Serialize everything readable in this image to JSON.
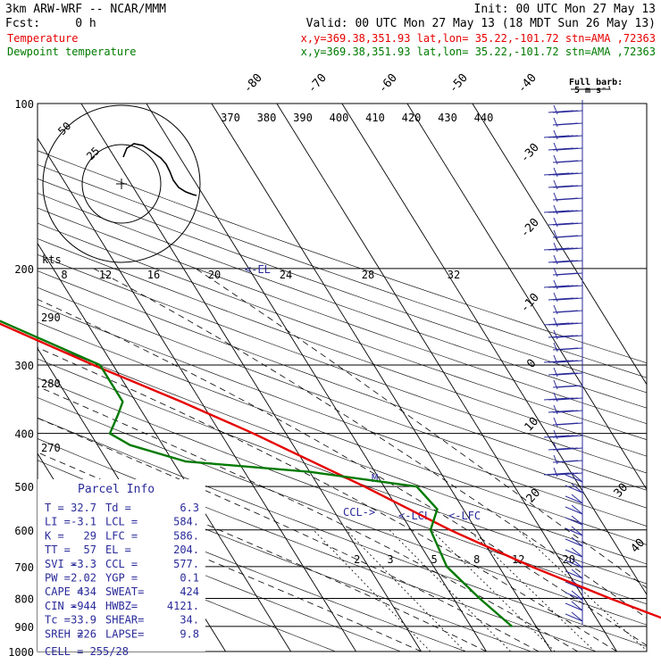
{
  "header": {
    "model": "3km ARW-WRF -- NCAR/MMM",
    "init": "Init: 00 UTC Mon 27 May 13",
    "fcst": "Fcst:     0 h",
    "valid": "Valid: 00 UTC Mon 27 May 13 (18 MDT Sun 26 May 13)",
    "lines": [
      {
        "label": "Temperature",
        "info": "x,y=369.38,351.93   lat,lon= 35.22,-101.72  stn=AMA ,72363",
        "color": "#e60000"
      },
      {
        "label": "Dewpoint temperature",
        "info": "x,y=369.38,351.93   lat,lon= 35.22,-101.72  stn=AMA ,72363",
        "color": "#007a00"
      }
    ]
  },
  "chart_data": {
    "type": "line",
    "title": "",
    "y_scale": "log-pressure",
    "ylim": [
      1000,
      100
    ],
    "pressure_ticks": [
      "100",
      "200",
      "300",
      "400",
      "500",
      "600",
      "700",
      "800",
      "900",
      "1000"
    ],
    "isotherm_labels": [
      "-80",
      "-70",
      "-60",
      "-50",
      "-40",
      "-30",
      "-20",
      "-10",
      "0",
      "10",
      "20",
      "30",
      "40"
    ],
    "theta_labels": [
      "370",
      "380",
      "390",
      "400",
      "410",
      "420",
      "430",
      "440"
    ],
    "theta_left_labels": [
      "290",
      "280",
      "270"
    ],
    "mixing_ratio_labels": [
      "2",
      "3",
      "5",
      "8",
      "12",
      "20"
    ],
    "hodograph": {
      "units": "kts",
      "ring_labels": [
        "25",
        "50"
      ],
      "scale_labels": [
        "8",
        "12",
        "16",
        "20",
        "24",
        "28",
        "32"
      ]
    },
    "barb_key": "Full barb:",
    "barb_key_unit": "5 m s⁻¹",
    "annotations": [
      "<-EL",
      "CCL->",
      "<-LCL",
      "<-LFC",
      "M"
    ],
    "series": [
      {
        "name": "Temperature",
        "color": "#e60000",
        "p": [
          900,
          800,
          700,
          600,
          500,
          400,
          350,
          300,
          250,
          210,
          200,
          190,
          180,
          170,
          160,
          150,
          140,
          130,
          120,
          110,
          100
        ],
        "t": [
          32.7,
          24,
          15,
          6,
          -3,
          -15,
          -23,
          -33,
          -44,
          -55,
          -57,
          -58,
          -60,
          -62,
          -64,
          -65,
          -66,
          -67,
          -68,
          -69,
          -70
        ]
      },
      {
        "name": "Dewpoint temperature",
        "color": "#007a00",
        "p": [
          900,
          800,
          700,
          600,
          550,
          500,
          470,
          450,
          420,
          400,
          370,
          350,
          300,
          250,
          200,
          190,
          180,
          170,
          160,
          150,
          140,
          130,
          120,
          110,
          100
        ],
        "t": [
          6.3,
          4,
          2,
          3,
          6,
          5,
          -10,
          -28,
          -35,
          -37,
          -34,
          -32,
          -32,
          -43,
          -60,
          -62,
          -64,
          -67,
          -70,
          -73,
          -76,
          -79,
          -82,
          -84,
          -86
        ]
      }
    ]
  },
  "parcel": {
    "title": "Parcel Info",
    "rows": [
      [
        "T  =",
        "32.7",
        "Td =",
        "6.3"
      ],
      [
        "LI =",
        "-3.1",
        "LCL =",
        "584."
      ],
      [
        "K  =",
        "29",
        "LFC =",
        "586."
      ],
      [
        "TT =",
        "57",
        "EL  =",
        "204."
      ],
      [
        "SVI =",
        "-3.3",
        "CCL =",
        "577."
      ],
      [
        "PW =",
        "2.02",
        "YGP =",
        "0.1"
      ],
      [
        "CAPE =",
        "434",
        "SWEAT=",
        "424"
      ],
      [
        "CIN =",
        "-944",
        "HWBZ=",
        "4121."
      ],
      [
        "Tc =",
        "33.9",
        "SHEAR=",
        "34."
      ],
      [
        "SREH =",
        "226",
        "LAPSE=",
        "9.8"
      ]
    ],
    "cell": "CELL = 255/28"
  },
  "colors": {
    "temperature": "#e60000",
    "dewpoint": "#007a00",
    "info": "#2a2a9a",
    "barbs": "#2a2a9a",
    "grid": "#000000"
  }
}
